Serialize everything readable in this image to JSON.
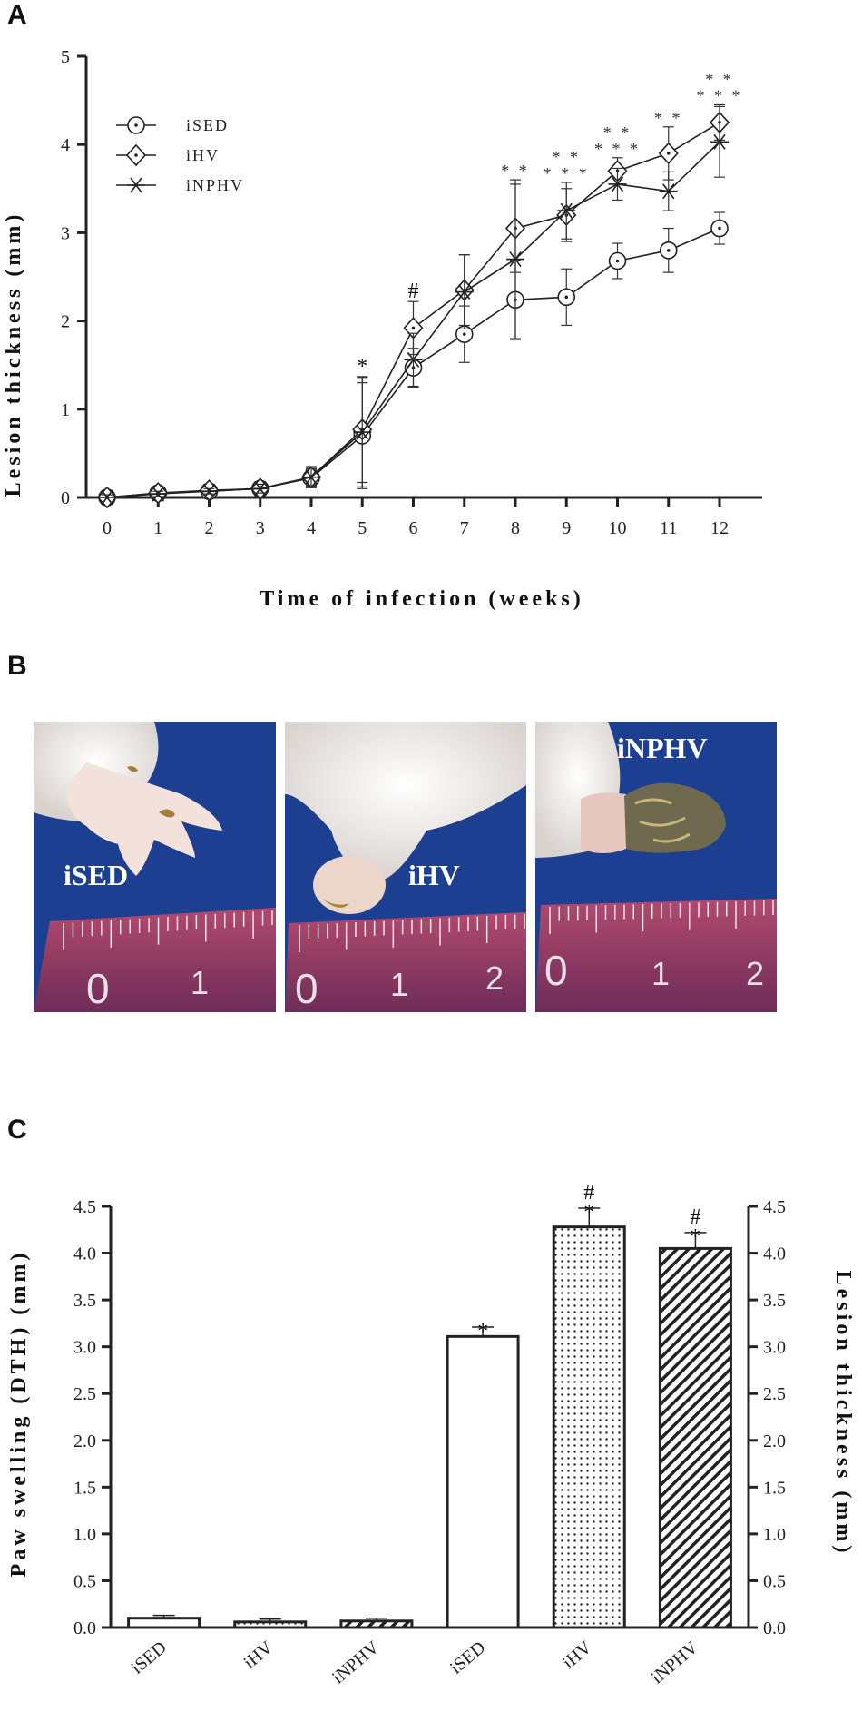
{
  "panels": {
    "a": "A",
    "b": "B",
    "c": "C"
  },
  "chart_data": [
    {
      "type": "line",
      "xlabel": "Time of infection (weeks)",
      "ylabel": "Lesion thickness (mm)",
      "xlim": [
        0,
        12
      ],
      "ylim": [
        0,
        5
      ],
      "x": [
        0,
        1,
        2,
        3,
        4,
        5,
        6,
        7,
        8,
        9,
        10,
        11,
        12
      ],
      "x_ticks": [
        "0",
        "1",
        "2",
        "3",
        "4",
        "5",
        "6",
        "7",
        "8",
        "9",
        "10",
        "11",
        "12"
      ],
      "y_ticks": [
        "0",
        "1",
        "2",
        "3",
        "4",
        "5"
      ],
      "legend_position": "top-left",
      "series": [
        {
          "name": "iSED",
          "marker": "circle",
          "values": [
            0,
            0.05,
            0.07,
            0.1,
            0.22,
            0.7,
            1.47,
            1.85,
            2.24,
            2.27,
            2.68,
            2.8,
            3.05
          ],
          "errors": [
            0.03,
            0.03,
            0.03,
            0.05,
            0.1,
            0.6,
            0.22,
            0.32,
            0.45,
            0.32,
            0.2,
            0.25,
            0.18
          ]
        },
        {
          "name": "iHV",
          "marker": "diamond",
          "values": [
            0,
            0.05,
            0.08,
            0.1,
            0.23,
            0.77,
            1.92,
            2.35,
            3.05,
            3.2,
            3.7,
            3.9,
            4.25
          ],
          "errors": [
            0.03,
            0.03,
            0.04,
            0.05,
            0.12,
            0.6,
            0.3,
            0.4,
            0.5,
            0.3,
            0.15,
            0.3,
            0.2
          ]
        },
        {
          "name": "iNPHV",
          "marker": "asterisk",
          "values": [
            0,
            0.04,
            0.07,
            0.1,
            0.23,
            0.74,
            1.56,
            2.33,
            2.7,
            3.25,
            3.55,
            3.47,
            4.03
          ],
          "errors": [
            0.03,
            0.03,
            0.03,
            0.05,
            0.1,
            0.62,
            0.3,
            0.42,
            0.9,
            0.32,
            0.18,
            0.22,
            0.4
          ]
        }
      ],
      "annotations": [
        {
          "x": 5,
          "text": "*"
        },
        {
          "x": 6,
          "text": "#"
        },
        {
          "x": 8,
          "text": "* *"
        },
        {
          "x": 9,
          "text": "* * *"
        },
        {
          "x": 9,
          "text": "* *"
        },
        {
          "x": 10,
          "text": "* * *"
        },
        {
          "x": 10,
          "text": "* *"
        },
        {
          "x": 11,
          "text": "* *"
        },
        {
          "x": 12,
          "text": "* * *"
        },
        {
          "x": 12,
          "text": "* *"
        }
      ]
    },
    {
      "type": "bar",
      "ylabel": "Paw swelling (DTH) (mm)",
      "y2label": "Lesion thickness (mm)",
      "ylim": [
        0,
        4.5
      ],
      "y_ticks": [
        "0.0",
        "0.5",
        "1.0",
        "1.5",
        "2.0",
        "2.5",
        "3.0",
        "3.5",
        "4.0",
        "4.5"
      ],
      "categories": [
        "iSED",
        "iHV",
        "iNPHV",
        "iSED",
        "iHV",
        "iNPHV"
      ],
      "values": [
        0.1,
        0.06,
        0.07,
        3.11,
        4.28,
        4.05
      ],
      "errors": [
        0.03,
        0.03,
        0.03,
        0.1,
        0.2,
        0.17
      ],
      "fills": [
        "white",
        "dots",
        "hatch",
        "white",
        "dots",
        "hatch"
      ],
      "annotations": [
        {
          "bar": 3,
          "text": "*"
        },
        {
          "bar": 4,
          "text": "*"
        },
        {
          "bar": 4,
          "text": "#"
        },
        {
          "bar": 5,
          "text": "*"
        },
        {
          "bar": 5,
          "text": "#"
        }
      ]
    }
  ],
  "photos": [
    {
      "label": "iSED",
      "ruler": [
        "0",
        "1"
      ]
    },
    {
      "label": "iHV",
      "ruler": [
        "0",
        "1",
        "2"
      ]
    },
    {
      "label": "iNPHV",
      "ruler": [
        "0",
        "1",
        "2"
      ]
    }
  ],
  "colors": {
    "axis": "#222222",
    "background_blue": "#1c3f91",
    "ruler": "#8a3a6a",
    "fur": "#f2ede8"
  }
}
